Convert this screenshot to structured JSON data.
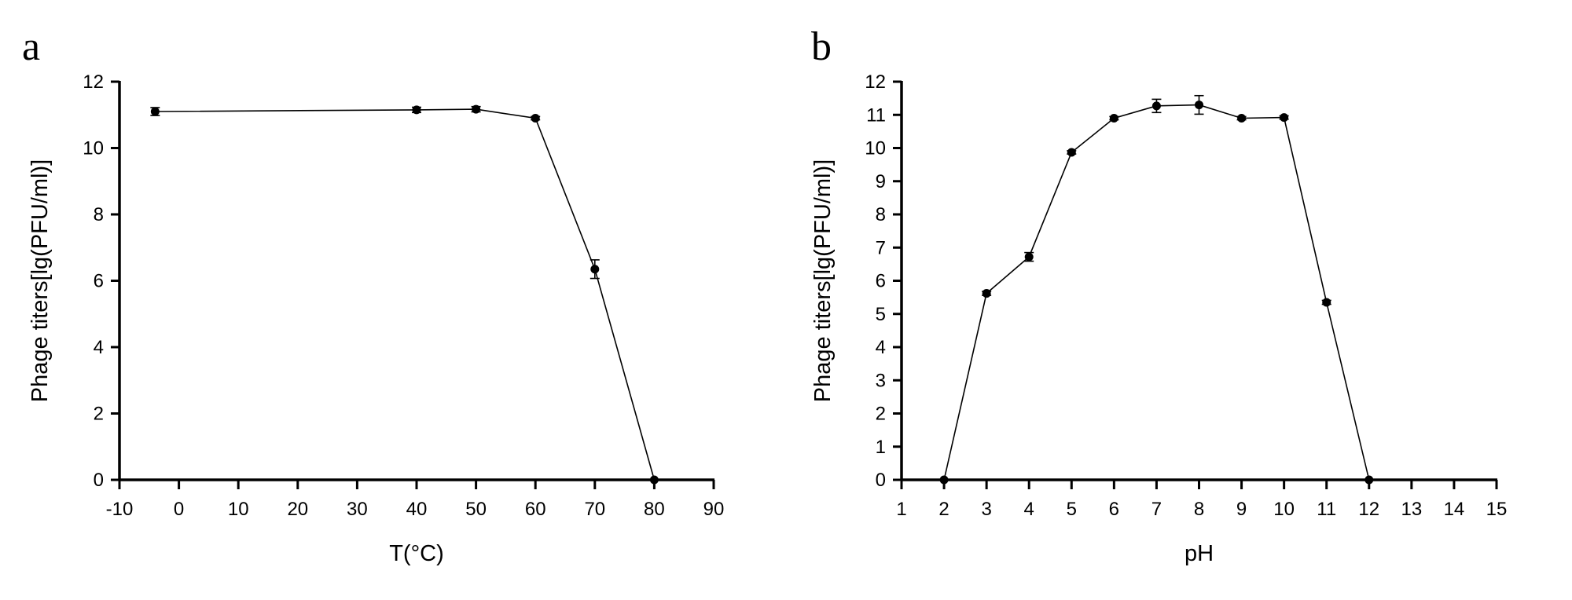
{
  "chart_data": [
    {
      "panel_label": "a",
      "type": "line",
      "xlabel": "T(°C)",
      "ylabel": "Phage titers[lg(PFU/ml)]",
      "xlim": [
        -10,
        90
      ],
      "ylim": [
        0,
        12
      ],
      "xticks": [
        -10,
        0,
        10,
        20,
        30,
        40,
        50,
        60,
        70,
        80,
        90
      ],
      "yticks": [
        0,
        2,
        4,
        6,
        8,
        10,
        12
      ],
      "grid": false,
      "series": [
        {
          "x": [
            -4,
            40,
            50,
            60,
            70,
            80
          ],
          "y": [
            11.1,
            11.15,
            11.17,
            10.9,
            6.35,
            0
          ],
          "error": [
            0.12,
            0.08,
            0.08,
            0.05,
            0.28,
            0
          ]
        }
      ]
    },
    {
      "panel_label": "b",
      "type": "line",
      "xlabel": "pH",
      "ylabel": "Phage titers[lg(PFU/ml)]",
      "xlim": [
        1,
        15
      ],
      "ylim": [
        0,
        12
      ],
      "xticks": [
        1,
        2,
        3,
        4,
        5,
        6,
        7,
        8,
        9,
        10,
        11,
        12,
        13,
        14,
        15
      ],
      "yticks": [
        0,
        1,
        2,
        3,
        4,
        5,
        6,
        7,
        8,
        9,
        10,
        11,
        12
      ],
      "grid": false,
      "series": [
        {
          "x": [
            2,
            3,
            4,
            5,
            6,
            7,
            8,
            9,
            10,
            11,
            12
          ],
          "y": [
            0,
            5.62,
            6.72,
            9.87,
            10.9,
            11.27,
            11.3,
            10.9,
            10.92,
            5.35,
            0
          ],
          "error": [
            0,
            0.06,
            0.13,
            0.05,
            0.05,
            0.2,
            0.28,
            0.05,
            0.05,
            0.06,
            0
          ]
        }
      ]
    }
  ]
}
